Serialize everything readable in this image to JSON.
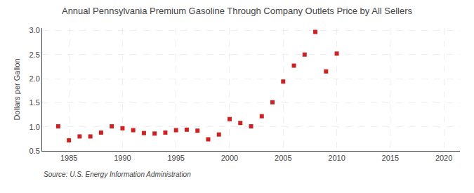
{
  "chart_data": {
    "type": "scatter",
    "title": "Annual Pennsylvania Premium Gasoline Through Company Outlets Price by All Sellers",
    "ylabel": "Dollars per Gallon",
    "annotations": [
      "Source: U.S. Energy Information Administration"
    ],
    "x": [
      1984,
      1985,
      1986,
      1987,
      1988,
      1989,
      1990,
      1991,
      1992,
      1993,
      1994,
      1995,
      1996,
      1997,
      1998,
      1999,
      2000,
      2001,
      2002,
      2003,
      2004,
      2005,
      2006,
      2007,
      2008,
      2009,
      2010
    ],
    "values": [
      1.01,
      0.72,
      0.8,
      0.8,
      0.88,
      1.01,
      0.97,
      0.93,
      0.87,
      0.86,
      0.88,
      0.93,
      0.94,
      0.92,
      0.74,
      0.84,
      1.16,
      1.08,
      1.01,
      1.22,
      1.51,
      1.94,
      2.27,
      2.5,
      2.97,
      2.15,
      2.52
    ],
    "color": "#cc2222",
    "marker": "square",
    "xlim": [
      1982.5,
      2021.5
    ],
    "xticks": [
      1985,
      1990,
      1995,
      2000,
      2005,
      2010,
      2015,
      2020
    ],
    "ylim": [
      0.5,
      3.05
    ],
    "yticks": [
      0.5,
      {
        "value": 1.0,
        "label": "1.0"
      },
      1.5,
      {
        "value": 2.0,
        "label": "2.0"
      },
      2.5,
      {
        "value": 3.0,
        "label": "3.0"
      }
    ],
    "grid": true
  }
}
